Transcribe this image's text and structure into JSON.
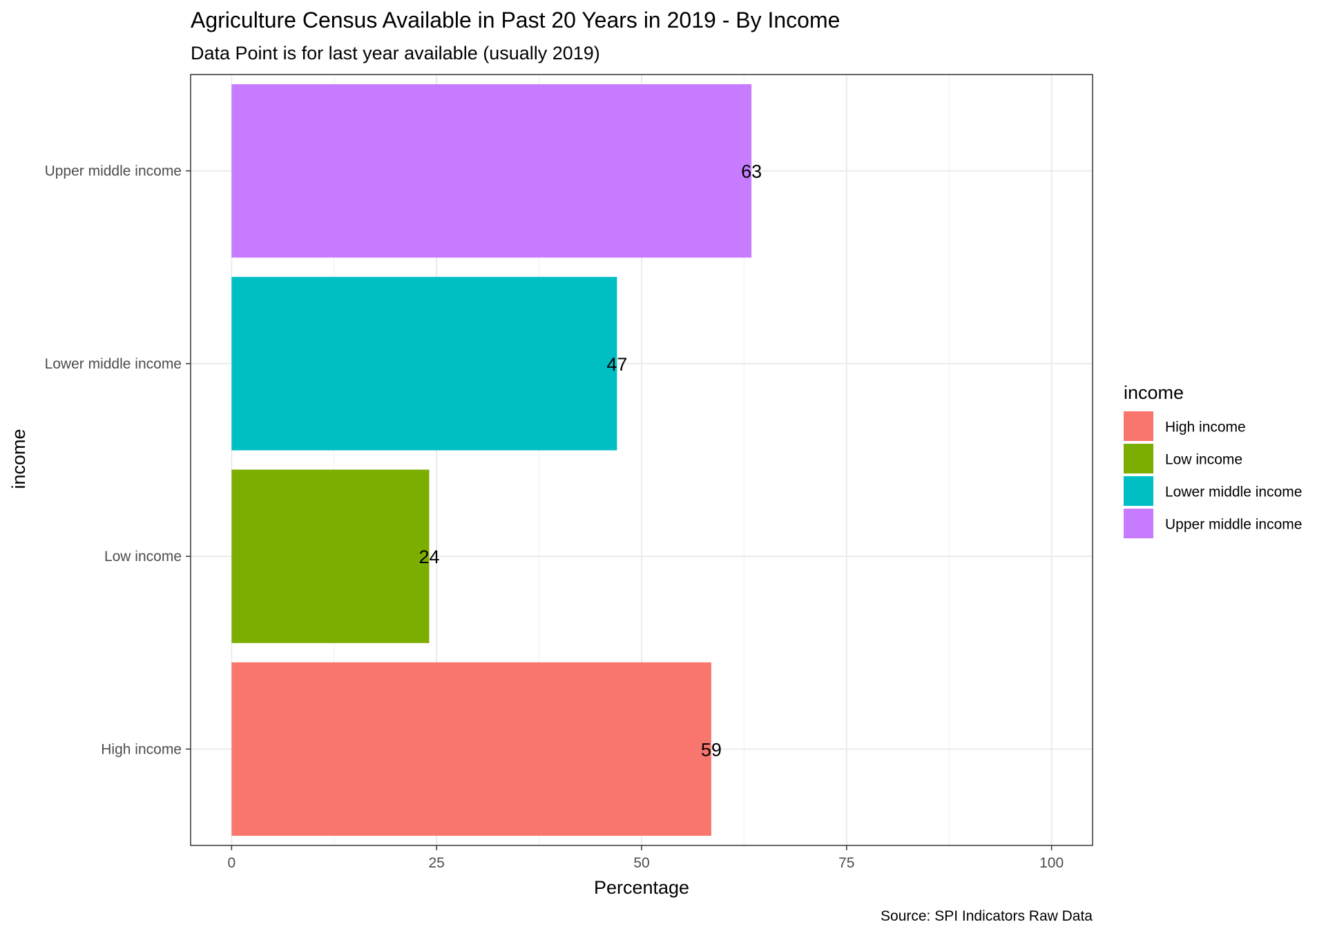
{
  "chart_data": {
    "type": "bar",
    "orientation": "horizontal",
    "title": "Agriculture Census Available in Past 20 Years in 2019 - By Income",
    "subtitle": "Data Point is for last year available (usually 2019)",
    "caption": "Source: SPI Indicators Raw Data",
    "xlabel": "Percentage",
    "ylabel": "income",
    "xlim": [
      -5,
      105
    ],
    "xticks": [
      0,
      25,
      50,
      75,
      100
    ],
    "grid": true,
    "categories": [
      "High income",
      "Low income",
      "Lower middle income",
      "Upper middle income"
    ],
    "values": [
      58.5,
      24.1,
      47,
      63.4
    ],
    "data_labels": [
      "59",
      "24",
      "47",
      "63"
    ],
    "colors": [
      "#F8766D",
      "#7CAE00",
      "#00BFC4",
      "#C77CFF"
    ],
    "legend": {
      "title": "income",
      "position": "right",
      "entries": [
        "High income",
        "Low income",
        "Lower middle income",
        "Upper middle income"
      ]
    }
  }
}
